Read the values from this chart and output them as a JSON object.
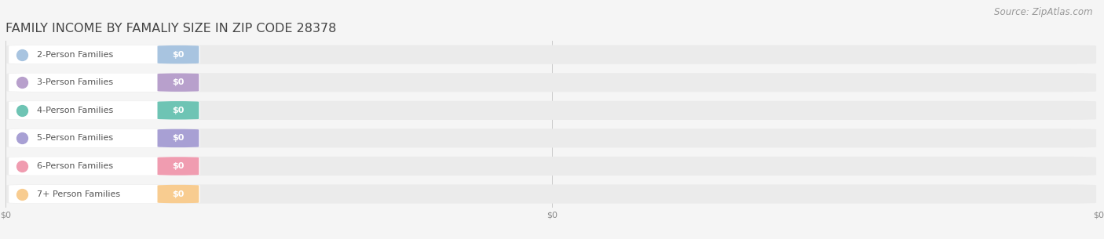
{
  "title": "FAMILY INCOME BY FAMALIY SIZE IN ZIP CODE 28378",
  "source_text": "Source: ZipAtlas.com",
  "categories": [
    "2-Person Families",
    "3-Person Families",
    "4-Person Families",
    "5-Person Families",
    "6-Person Families",
    "7+ Person Families"
  ],
  "values": [
    0,
    0,
    0,
    0,
    0,
    0
  ],
  "bar_colors": [
    "#a8c4e0",
    "#b8a0cc",
    "#6ec4b4",
    "#a8a0d4",
    "#f09cb0",
    "#f8cc90"
  ],
  "bg_color": "#f5f5f5",
  "row_bg_color": "#ebebeb",
  "label_box_color": "#ffffff",
  "title_color": "#444444",
  "label_text_color": "#555555",
  "value_label_color": "#ffffff",
  "source_color": "#999999",
  "tick_label_color": "#888888",
  "title_fontsize": 11.5,
  "label_fontsize": 8.0,
  "tick_fontsize": 8.0,
  "source_fontsize": 8.5,
  "n_xticks": 3,
  "xtick_labels": [
    "$0",
    "$0",
    "$0"
  ],
  "xtick_positions": [
    0.0,
    0.5,
    1.0
  ]
}
